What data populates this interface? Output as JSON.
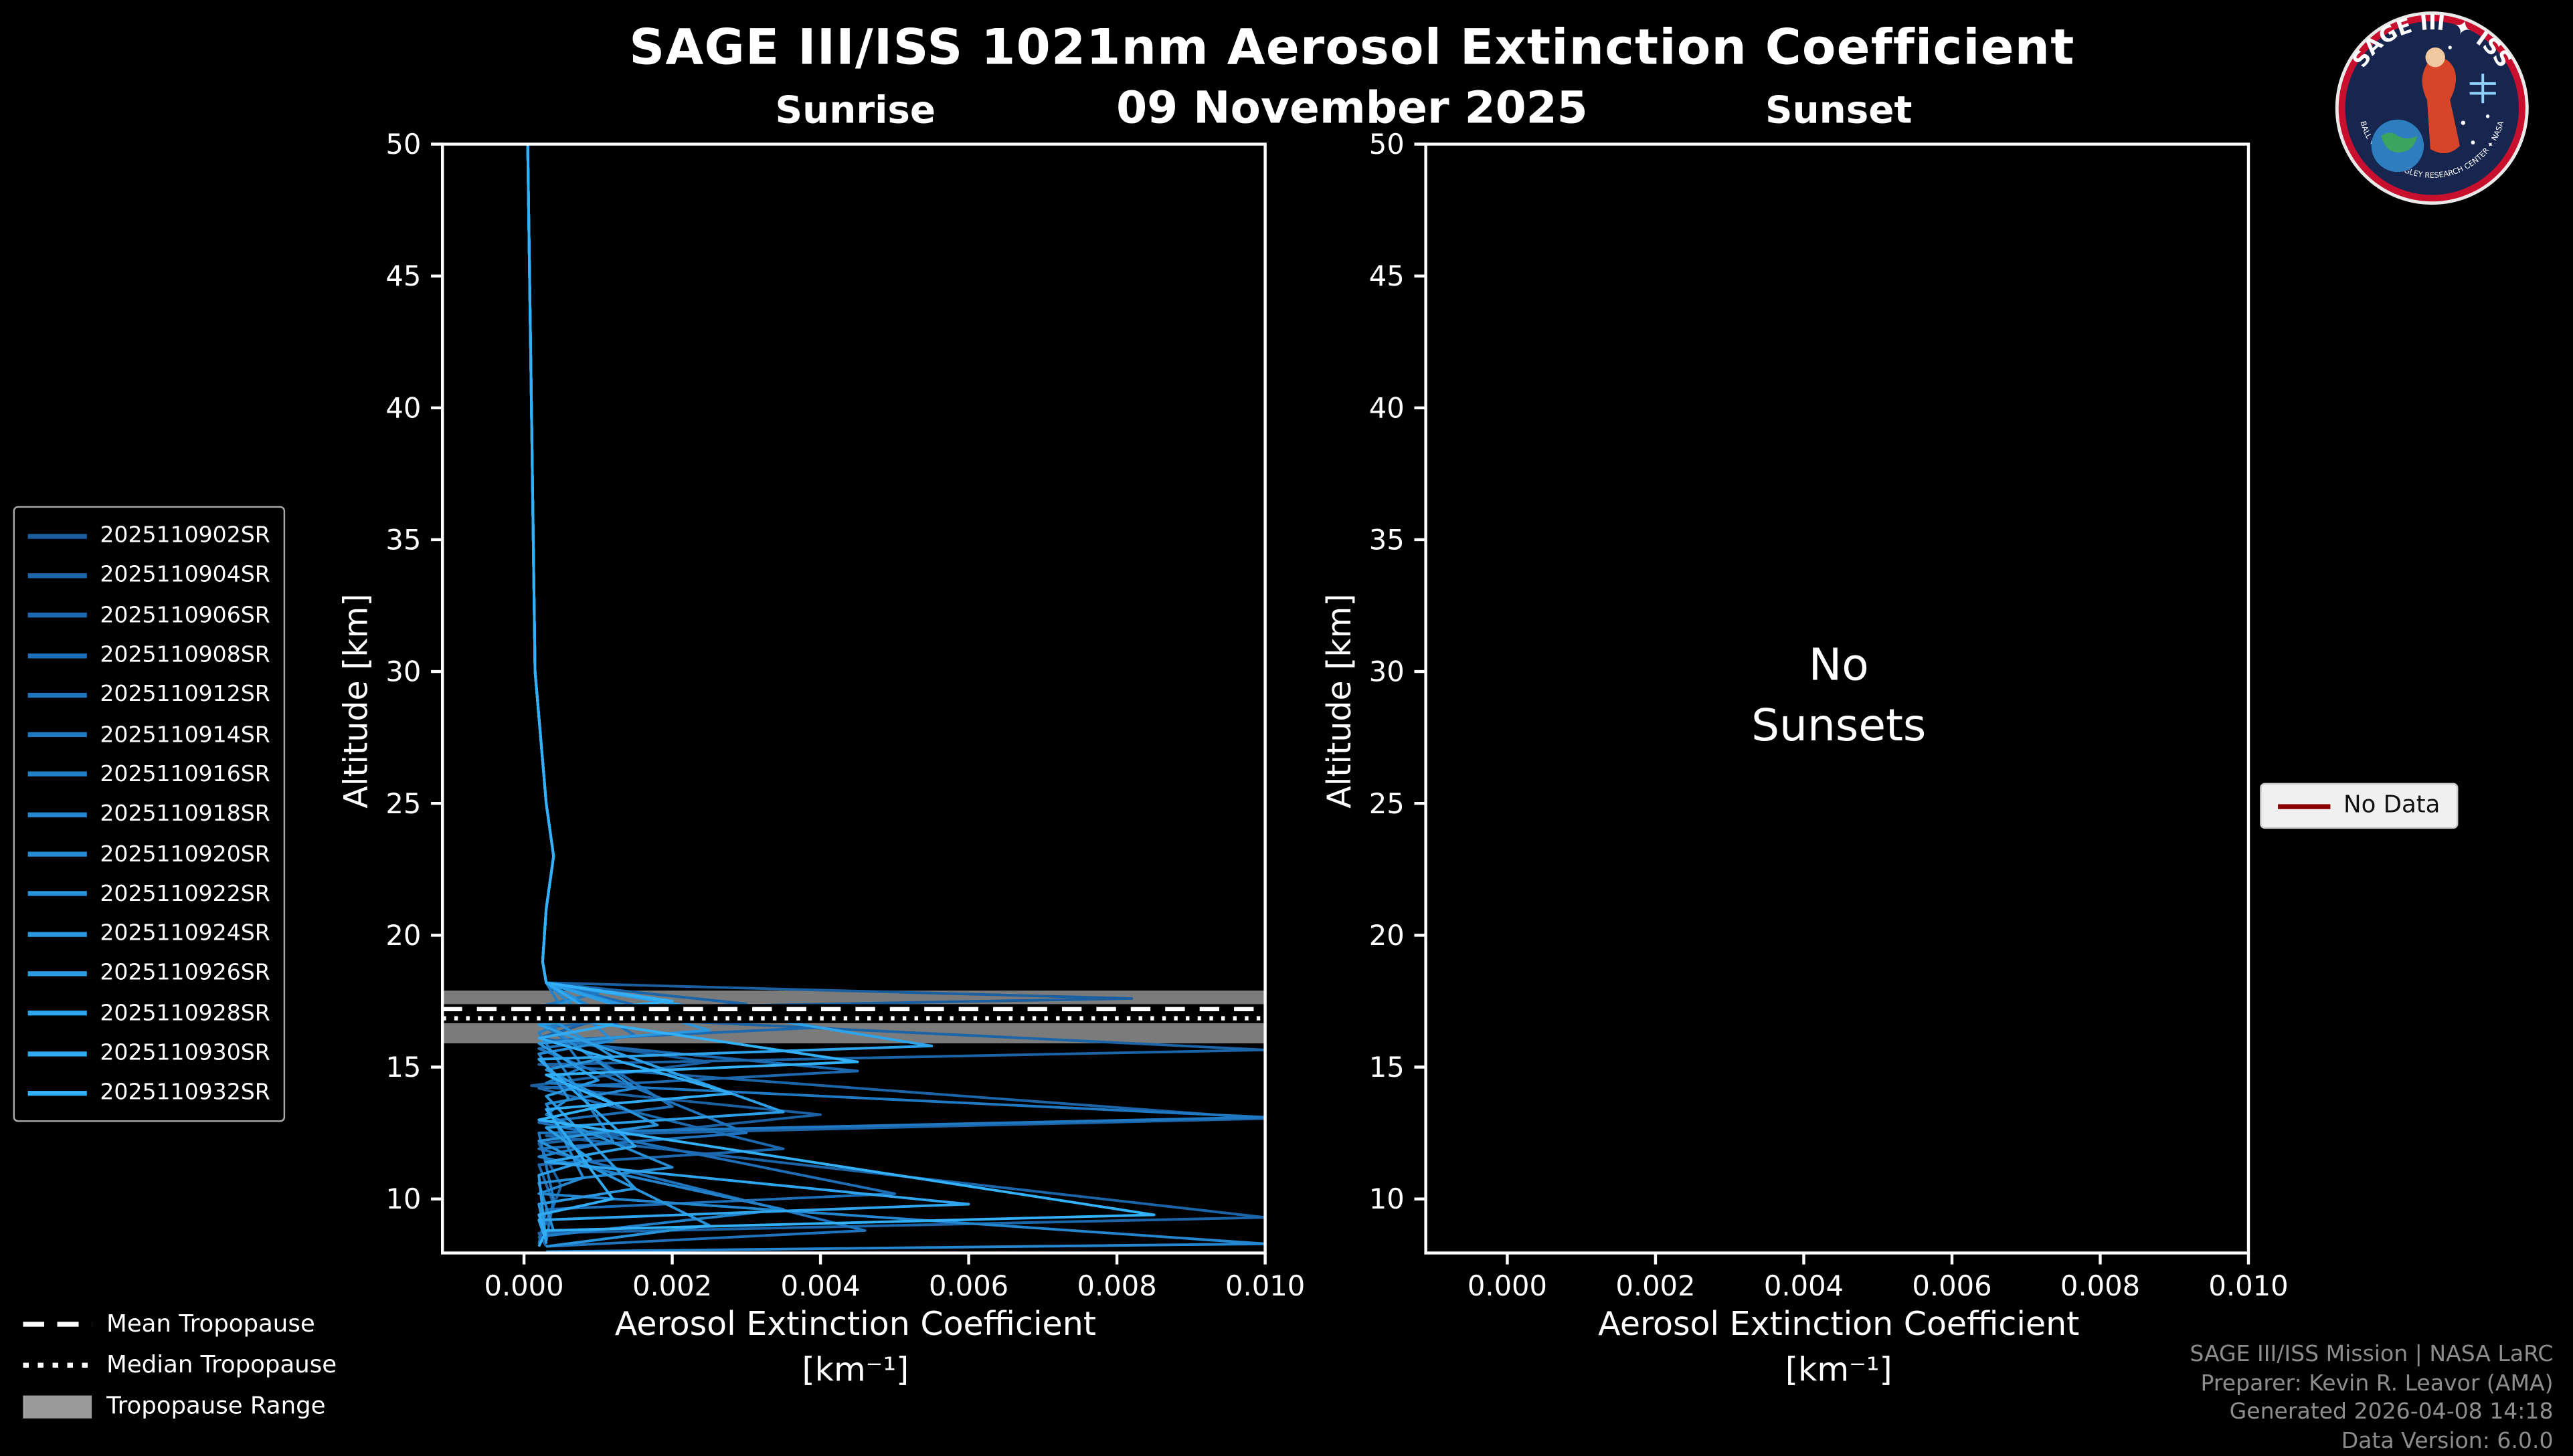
{
  "title": "SAGE III/ISS 1021nm Aerosol Extinction Coefficient",
  "date": "09 November 2025",
  "logo": {
    "arc_top": "SAGE III ✦ ISS",
    "arc_bottom": "BALL ✦ NASA LANGLEY RESEARCH CENTER ✦ NASA"
  },
  "panels": {
    "sunrise": {
      "title": "Sunrise",
      "xlabel": "Aerosol Extinction Coefficient",
      "xunit": "[km⁻¹]",
      "ylabel": "Altitude [km]",
      "empty_text": ""
    },
    "sunset": {
      "title": "Sunset",
      "xlabel": "Aerosol Extinction Coefficient",
      "xunit": "[km⁻¹]",
      "ylabel": "Altitude [km]",
      "empty_text": "No\nSunsets"
    }
  },
  "tropopause_legend": {
    "mean": "Mean Tropopause",
    "median": "Median Tropopause",
    "range": "Tropopause Range"
  },
  "no_data_legend": {
    "label": "No Data",
    "color": "#8b0000"
  },
  "footer": {
    "line1": "SAGE III/ISS Mission | NASA LaRC",
    "line2": "Preparer: Kevin R. Leavor (AMA)",
    "line3": "Generated 2026-04-08 14:18",
    "line4": "Data Version: 6.0.0"
  },
  "chart_data": {
    "type": "line",
    "title": "SAGE III/ISS 1021nm Aerosol Extinction Coefficient",
    "subtitle": "09 November 2025",
    "xlabel": "Aerosol Extinction Coefficient [km⁻¹]",
    "ylabel": "Altitude [km]",
    "xlim": [
      -0.0011,
      0.01
    ],
    "ylim": [
      7.95,
      50
    ],
    "xticks": [
      0.0,
      0.002,
      0.004,
      0.006,
      0.008,
      0.01
    ],
    "xtick_labels": [
      "0.000",
      "0.002",
      "0.004",
      "0.006",
      "0.008",
      "0.010"
    ],
    "yticks": [
      10,
      15,
      20,
      25,
      30,
      35,
      40,
      45,
      50
    ],
    "grid": false,
    "background": "#000000",
    "tropopause": {
      "mean_km": 17.2,
      "median_km": 16.85,
      "range_km": [
        15.9,
        17.9
      ],
      "band_color": "#9a9a9a"
    },
    "sunset_series": [],
    "sunrise_series": [
      {
        "name": "2025110902SR",
        "color": "#1a5fa0",
        "points": [
          [
            5e-05,
            50
          ],
          [
            0.0001,
            40
          ],
          [
            0.00015,
            30
          ],
          [
            0.0003,
            25
          ],
          [
            0.0004,
            23
          ],
          [
            0.0003,
            21
          ],
          [
            0.00025,
            19
          ],
          [
            0.0003,
            18.2
          ],
          [
            0.0082,
            17.6
          ],
          [
            0.0003,
            17.2
          ],
          [
            0.001,
            16.8
          ],
          [
            0.0002,
            16.1
          ],
          [
            0.0025,
            15.2
          ],
          [
            0.0001,
            14.3
          ],
          [
            0.004,
            13.2
          ],
          [
            0.0002,
            12.1
          ],
          [
            0.0005,
            10.5
          ],
          [
            0.0003,
            9.0
          ]
        ]
      },
      {
        "name": "2025110904SR",
        "color": "#1b64a8",
        "points": [
          [
            5e-05,
            50
          ],
          [
            0.0001,
            40
          ],
          [
            0.00015,
            30
          ],
          [
            0.0003,
            25
          ],
          [
            0.0004,
            23
          ],
          [
            0.0003,
            21
          ],
          [
            0.00025,
            19
          ],
          [
            0.0003,
            18.2
          ],
          [
            0.003,
            17.4
          ],
          [
            0.0002,
            17.0
          ],
          [
            0.0105,
            15.65
          ],
          [
            0.0002,
            15.1
          ],
          [
            0.0105,
            13.05
          ],
          [
            0.0003,
            12.4
          ],
          [
            0.0105,
            9.3
          ],
          [
            0.0002,
            8.7
          ],
          [
            0.0003,
            8.2
          ]
        ]
      },
      {
        "name": "2025110906SR",
        "color": "#1c69b0",
        "points": [
          [
            5e-05,
            50
          ],
          [
            0.0001,
            40
          ],
          [
            0.00015,
            30
          ],
          [
            0.0003,
            25
          ],
          [
            0.0004,
            23
          ],
          [
            0.0003,
            21
          ],
          [
            0.00025,
            19
          ],
          [
            0.0003,
            18.2
          ],
          [
            0.004,
            16.5
          ],
          [
            0.0003,
            16.0
          ],
          [
            0.0045,
            14.85
          ],
          [
            0.0002,
            14.2
          ],
          [
            0.0035,
            11.9
          ],
          [
            0.0002,
            11.3
          ],
          [
            0.0004,
            9.8
          ],
          [
            0.0002,
            8.5
          ]
        ]
      },
      {
        "name": "2025110908SR",
        "color": "#1d6eb6",
        "points": [
          [
            5e-05,
            50
          ],
          [
            0.0001,
            40
          ],
          [
            0.00015,
            30
          ],
          [
            0.0003,
            25
          ],
          [
            0.0004,
            23
          ],
          [
            0.0003,
            21
          ],
          [
            0.00025,
            19
          ],
          [
            0.0003,
            18.2
          ],
          [
            0.002,
            17.0
          ],
          [
            0.0003,
            16.5
          ],
          [
            0.002,
            13.5
          ],
          [
            0.0002,
            12.9
          ],
          [
            0.005,
            10.2
          ],
          [
            0.0003,
            9.6
          ],
          [
            0.0002,
            8.3
          ]
        ]
      },
      {
        "name": "2025110912SR",
        "color": "#1e73bc",
        "points": [
          [
            5e-05,
            50
          ],
          [
            0.0001,
            40
          ],
          [
            0.00015,
            30
          ],
          [
            0.0003,
            25
          ],
          [
            0.0004,
            23
          ],
          [
            0.0003,
            21
          ],
          [
            0.00025,
            19
          ],
          [
            0.0003,
            18.2
          ],
          [
            0.0015,
            16.2
          ],
          [
            0.0002,
            15.7
          ],
          [
            0.003,
            12.5
          ],
          [
            0.0002,
            11.9
          ],
          [
            0.0046,
            8.8
          ],
          [
            0.0003,
            8.2
          ]
        ]
      },
      {
        "name": "2025110914SR",
        "color": "#1f78c2",
        "points": [
          [
            5e-05,
            50
          ],
          [
            0.0001,
            40
          ],
          [
            0.00015,
            30
          ],
          [
            0.0003,
            25
          ],
          [
            0.0004,
            23
          ],
          [
            0.0003,
            21
          ],
          [
            0.00025,
            19
          ],
          [
            0.0003,
            18.2
          ],
          [
            0.001,
            17.8
          ],
          [
            0.0002,
            17.3
          ],
          [
            0.0008,
            15.0
          ],
          [
            0.0003,
            14.4
          ],
          [
            0.0105,
            13.1
          ],
          [
            0.0002,
            12.5
          ],
          [
            0.0004,
            10.0
          ],
          [
            0.0003,
            8.4
          ]
        ]
      },
      {
        "name": "2025110916SR",
        "color": "#2280c8",
        "points": [
          [
            5e-05,
            50
          ],
          [
            0.0001,
            40
          ],
          [
            0.00015,
            30
          ],
          [
            0.0003,
            25
          ],
          [
            0.0004,
            23
          ],
          [
            0.0003,
            21
          ],
          [
            0.00025,
            19
          ],
          [
            0.0003,
            18.2
          ],
          [
            0.0006,
            16.8
          ],
          [
            0.0002,
            16.3
          ],
          [
            0.0012,
            12.2
          ],
          [
            0.0002,
            11.6
          ],
          [
            0.0035,
            9.6
          ],
          [
            0.0003,
            8.6
          ]
        ]
      },
      {
        "name": "2025110918SR",
        "color": "#2486ce",
        "points": [
          [
            5e-05,
            50
          ],
          [
            0.0001,
            40
          ],
          [
            0.00015,
            30
          ],
          [
            0.0003,
            25
          ],
          [
            0.0004,
            23
          ],
          [
            0.0003,
            21
          ],
          [
            0.00025,
            19
          ],
          [
            0.0003,
            18.2
          ],
          [
            0.0009,
            17.3
          ],
          [
            0.0002,
            16.8
          ],
          [
            0.0015,
            14.2
          ],
          [
            0.0003,
            13.6
          ],
          [
            0.0008,
            10.8
          ],
          [
            0.0002,
            10.2
          ],
          [
            0.0105,
            8.3
          ],
          [
            0.0003,
            8.0
          ]
        ]
      },
      {
        "name": "2025110920SR",
        "color": "#268cd4",
        "points": [
          [
            5e-05,
            50
          ],
          [
            0.0001,
            40
          ],
          [
            0.00015,
            30
          ],
          [
            0.0003,
            25
          ],
          [
            0.0004,
            23
          ],
          [
            0.0003,
            21
          ],
          [
            0.00025,
            19
          ],
          [
            0.0003,
            18.2
          ],
          [
            0.0012,
            16.0
          ],
          [
            0.0002,
            15.5
          ],
          [
            0.0006,
            13.8
          ],
          [
            0.0003,
            13.2
          ],
          [
            0.002,
            11.2
          ],
          [
            0.0002,
            10.6
          ],
          [
            0.0004,
            8.8
          ]
        ]
      },
      {
        "name": "2025110922SR",
        "color": "#2892da",
        "points": [
          [
            5e-05,
            50
          ],
          [
            0.0001,
            40
          ],
          [
            0.00015,
            30
          ],
          [
            0.0003,
            25
          ],
          [
            0.0004,
            23
          ],
          [
            0.0003,
            21
          ],
          [
            0.00025,
            19
          ],
          [
            0.0003,
            18.2
          ],
          [
            0.0007,
            17.6
          ],
          [
            0.0002,
            17.1
          ],
          [
            0.0012,
            15.4
          ],
          [
            0.0003,
            14.9
          ],
          [
            0.0018,
            12.8
          ],
          [
            0.0002,
            12.2
          ],
          [
            0.0025,
            9.0
          ],
          [
            0.0003,
            8.2
          ]
        ]
      },
      {
        "name": "2025110924SR",
        "color": "#2a98e0",
        "points": [
          [
            5e-05,
            50
          ],
          [
            0.0001,
            40
          ],
          [
            0.00015,
            30
          ],
          [
            0.0003,
            25
          ],
          [
            0.0004,
            23
          ],
          [
            0.0003,
            21
          ],
          [
            0.00025,
            19
          ],
          [
            0.0003,
            18.2
          ],
          [
            0.0025,
            16.4
          ],
          [
            0.0002,
            15.9
          ],
          [
            0.001,
            14.5
          ],
          [
            0.0003,
            13.9
          ],
          [
            0.0015,
            10.4
          ],
          [
            0.0002,
            9.8
          ],
          [
            0.0003,
            8.5
          ]
        ]
      },
      {
        "name": "2025110926SR",
        "color": "#2c9ee6",
        "points": [
          [
            5e-05,
            50
          ],
          [
            0.0001,
            40
          ],
          [
            0.00015,
            30
          ],
          [
            0.0003,
            25
          ],
          [
            0.0004,
            23
          ],
          [
            0.0003,
            21
          ],
          [
            0.00025,
            19
          ],
          [
            0.0003,
            18.2
          ],
          [
            0.0015,
            17.1
          ],
          [
            0.0002,
            16.6
          ],
          [
            0.0035,
            13.3
          ],
          [
            0.0003,
            12.7
          ],
          [
            0.0009,
            11.5
          ],
          [
            0.0002,
            10.9
          ],
          [
            0.0003,
            8.3
          ]
        ]
      },
      {
        "name": "2025110928SR",
        "color": "#2ea4ec",
        "points": [
          [
            5e-05,
            50
          ],
          [
            0.0001,
            40
          ],
          [
            0.00015,
            30
          ],
          [
            0.0003,
            25
          ],
          [
            0.0004,
            23
          ],
          [
            0.0003,
            21
          ],
          [
            0.00025,
            19
          ],
          [
            0.0003,
            18.2
          ],
          [
            0.0055,
            15.8
          ],
          [
            0.0002,
            15.3
          ],
          [
            0.0015,
            12.0
          ],
          [
            0.0003,
            11.4
          ],
          [
            0.006,
            9.8
          ],
          [
            0.0002,
            9.2
          ],
          [
            0.0003,
            8.4
          ]
        ]
      },
      {
        "name": "2025110930SR",
        "color": "#30aaf2",
        "points": [
          [
            5e-05,
            50
          ],
          [
            0.0001,
            40
          ],
          [
            0.00015,
            30
          ],
          [
            0.0003,
            25
          ],
          [
            0.0004,
            23
          ],
          [
            0.0003,
            21
          ],
          [
            0.00025,
            19
          ],
          [
            0.0003,
            18.2
          ],
          [
            0.0012,
            16.6
          ],
          [
            0.0002,
            16.1
          ],
          [
            0.0028,
            14.0
          ],
          [
            0.0003,
            13.4
          ],
          [
            0.0012,
            10.0
          ],
          [
            0.0002,
            9.4
          ],
          [
            0.0003,
            8.6
          ]
        ]
      },
      {
        "name": "2025110932SR",
        "color": "#32b0f8",
        "points": [
          [
            5e-05,
            50
          ],
          [
            0.0001,
            40
          ],
          [
            0.00015,
            30
          ],
          [
            0.0003,
            25
          ],
          [
            0.0004,
            23
          ],
          [
            0.0003,
            21
          ],
          [
            0.00025,
            19
          ],
          [
            0.0003,
            18.2
          ],
          [
            0.002,
            17.5
          ],
          [
            0.0002,
            17.0
          ],
          [
            0.0045,
            15.2
          ],
          [
            0.0003,
            14.7
          ],
          [
            0.0012,
            13.6
          ],
          [
            0.0002,
            13.0
          ],
          [
            0.0085,
            9.4
          ],
          [
            0.0003,
            8.8
          ],
          [
            0.0002,
            8.2
          ]
        ]
      }
    ]
  }
}
